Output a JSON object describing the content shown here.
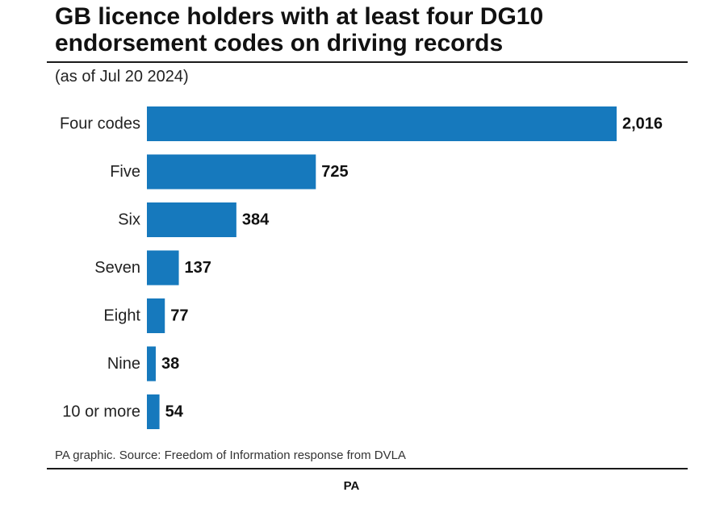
{
  "header": {
    "title": "GB licence holders with at least four DG10 endorsement codes on driving records",
    "subtitle": "(as of Jul 20 2024)"
  },
  "footer": {
    "source": "PA graphic. Source: Freedom of Information response from DVLA",
    "credit": "PA"
  },
  "colors": {
    "bar": "#1679bd"
  },
  "chart_data": {
    "type": "bar",
    "orientation": "horizontal",
    "title": "GB licence holders with at least four DG10 endorsement codes on driving records",
    "subtitle": "(as of Jul 20 2024)",
    "categories": [
      "Four codes",
      "Five",
      "Six",
      "Seven",
      "Eight",
      "Nine",
      "10 or more"
    ],
    "values": [
      2016,
      725,
      384,
      137,
      77,
      38,
      54
    ],
    "value_labels": [
      "2,016",
      "725",
      "384",
      "137",
      "77",
      "38",
      "54"
    ],
    "xlabel": "",
    "ylabel": "",
    "xlim": [
      0,
      2016
    ],
    "grid": false,
    "legend": "none"
  }
}
